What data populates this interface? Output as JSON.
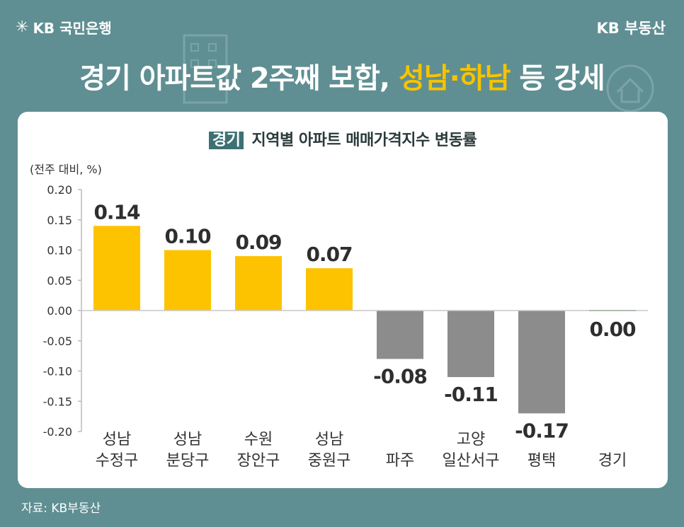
{
  "header": {
    "logo_text": "KB 국민은행",
    "brand_right": "KB 부동산",
    "headline_part1": "경기 아파트값 2주째 보합,",
    "headline_highlight": "성남·하남",
    "headline_part2": "등 강세"
  },
  "colors": {
    "background": "#5f8f92",
    "highlight": "#f7c300",
    "bar_positive": "#fdc300",
    "bar_negative": "#8c8c8c",
    "bar_zero": "#6a9a6a"
  },
  "chart_data": {
    "type": "bar",
    "title_tag": "경기",
    "title": "지역별 아파트 매매가격지수 변동률",
    "unit_label": "(전주 대비, %)",
    "categories": [
      [
        "성남",
        "수정구"
      ],
      [
        "성남",
        "분당구"
      ],
      [
        "수원",
        "장안구"
      ],
      [
        "성남",
        "중원구"
      ],
      [
        "파주"
      ],
      [
        "고양",
        "일산서구"
      ],
      [
        "평택"
      ],
      [
        "경기"
      ]
    ],
    "values": [
      0.14,
      0.1,
      0.09,
      0.07,
      -0.08,
      -0.11,
      -0.17,
      0.0
    ],
    "value_labels": [
      "0.14",
      "0.10",
      "0.09",
      "0.07",
      "-0.08",
      "-0.11",
      "-0.17",
      "0.00"
    ],
    "ylim": [
      -0.2,
      0.2
    ],
    "yticks": [
      0.2,
      0.15,
      0.1,
      0.05,
      0.0,
      -0.05,
      -0.1,
      -0.15,
      -0.2
    ],
    "ytick_labels": [
      "0.20",
      "0.15",
      "0.10",
      "0.05",
      "0.00",
      "-0.05",
      "-0.10",
      "-0.15",
      "-0.20"
    ],
    "grid": false
  },
  "footer": {
    "source": "자료: KB부동산"
  }
}
